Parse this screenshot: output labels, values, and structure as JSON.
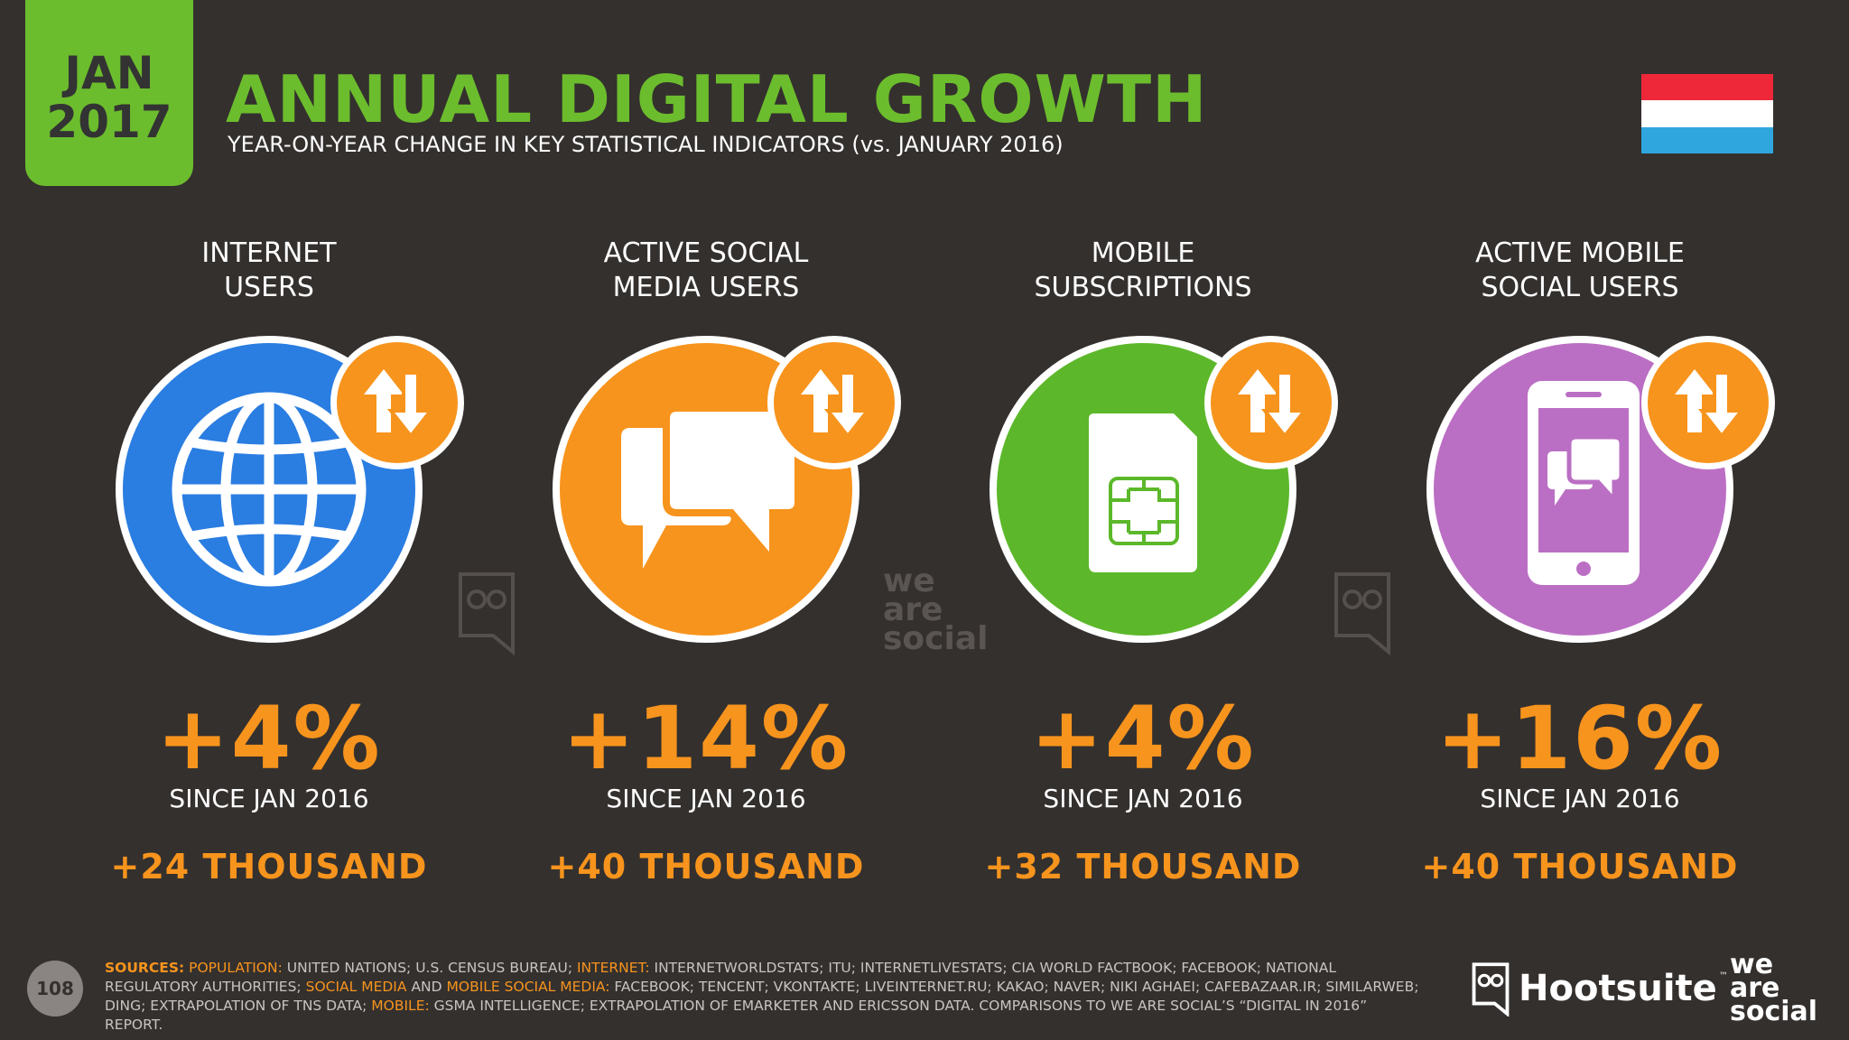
{
  "header": {
    "date_month": "JAN",
    "date_year": "2017",
    "title": "ANNUAL DIGITAL GROWTH",
    "subtitle": "YEAR-ON-YEAR CHANGE IN KEY STATISTICAL INDICATORS (vs. JANUARY 2016)",
    "flag_colors": [
      "#ee2839",
      "#ffffff",
      "#2fa6de"
    ]
  },
  "columns": [
    {
      "label_line1": "INTERNET",
      "label_line2": "USERS",
      "icon": "globe-icon",
      "color": "#2a7de1",
      "percent": "+4%",
      "since": "SINCE JAN 2016",
      "absolute": "+24 THOUSAND"
    },
    {
      "label_line1": "ACTIVE SOCIAL",
      "label_line2": "MEDIA USERS",
      "icon": "speech-bubbles-icon",
      "color": "#f7941d",
      "percent": "+14%",
      "since": "SINCE JAN 2016",
      "absolute": "+40 THOUSAND"
    },
    {
      "label_line1": "MOBILE",
      "label_line2": "SUBSCRIPTIONS",
      "icon": "sim-card-icon",
      "color": "#5cb82a",
      "percent": "+4%",
      "since": "SINCE JAN 2016",
      "absolute": "+32 THOUSAND"
    },
    {
      "label_line1": "ACTIVE MOBILE",
      "label_line2": "SOCIAL USERS",
      "icon": "mobile-chat-icon",
      "color": "#bb6fc4",
      "percent": "+16%",
      "since": "SINCE JAN 2016",
      "absolute": "+40 THOUSAND"
    }
  ],
  "badge_icon": "up-down-arrows-icon",
  "watermark": {
    "line1": "we",
    "line2": "are",
    "line3": "social"
  },
  "footer": {
    "page_number": "108",
    "sources_label": "SOURCES:",
    "src_population_label": "POPULATION:",
    "src_population": "UNITED NATIONS; U.S. CENSUS BUREAU;",
    "src_internet_label": "INTERNET:",
    "src_internet": "INTERNETWORLDSTATS; ITU; INTERNETLIVESTATS; CIA WORLD FACTBOOK; FACEBOOK; NATIONAL REGULATORY AUTHORITIES;",
    "src_social_label": "SOCIAL MEDIA",
    "src_and": "AND",
    "src_mobile_social_label": "MOBILE SOCIAL MEDIA:",
    "src_social": "FACEBOOK; TENCENT; VKONTAKTE; LIVEINTERNET.RU; KAKAO; NAVER; NIKI AGHAEI; CAFEBAZAAR.IR; SIMILARWEB; DING; EXTRAPOLATION OF TNS DATA;",
    "src_mobile_label": "MOBILE:",
    "src_mobile": "GSMA INTELLIGENCE; EXTRAPOLATION OF EMARKETER AND ERICSSON DATA. COMPARISONS TO WE ARE SOCIAL’S “DIGITAL IN 2016” REPORT.",
    "hootsuite": "Hootsuite",
    "hootsuite_tm": "™",
    "was_line1": "we",
    "was_line2": "are",
    "was_line3": "social"
  }
}
